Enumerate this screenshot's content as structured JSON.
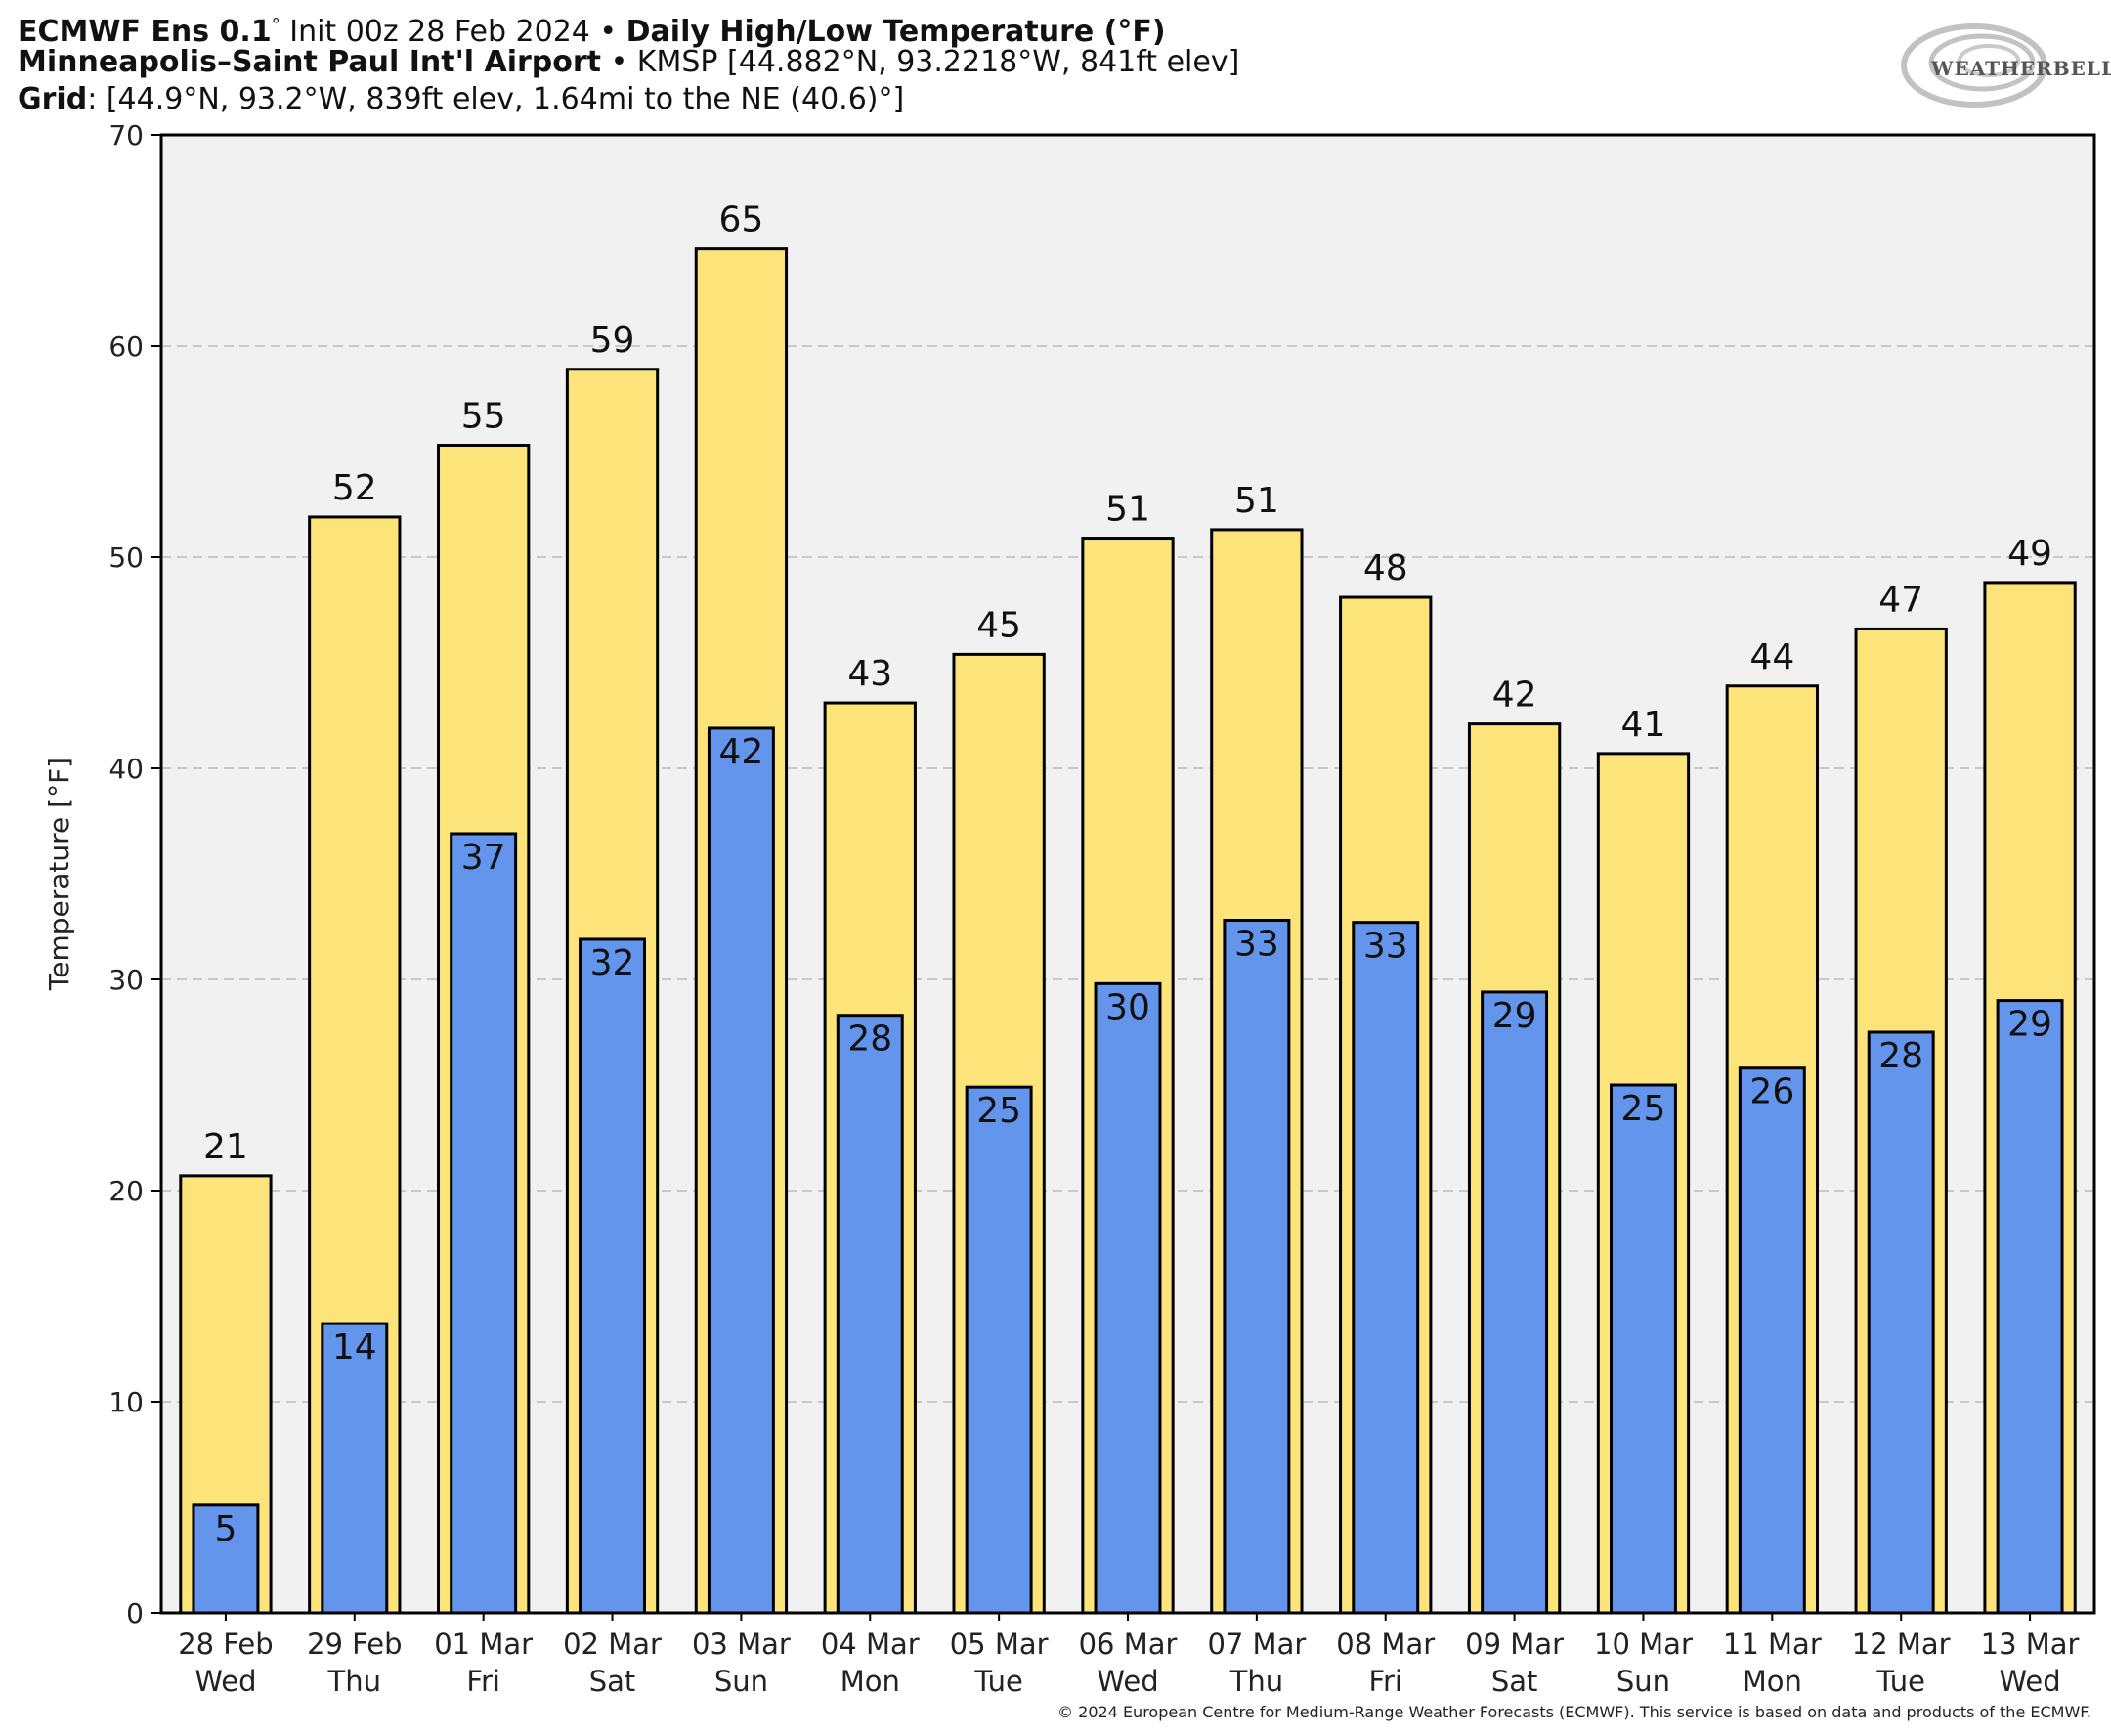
{
  "header": {
    "line1_bold_a": "ECMWF Ens 0.1",
    "line1_deg": "°",
    "line1_rest": " Init 00z 28 Feb 2024 • ",
    "line1_bold_b": "Daily High/Low Temperature (°F)",
    "line2_bold": "Minneapolis–Saint Paul Int'l Airport",
    "line2_rest": " • KMSP [44.882°N, 93.2218°W, 841ft elev]",
    "line3_bold": "Grid",
    "line3_rest": ": [44.9°N, 93.2°W, 839ft elev, 1.64mi to the NE (40.6)°]"
  },
  "logo": {
    "text": "WEATHERBELL"
  },
  "credit": "© 2024 European Centre for Medium-Range Weather Forecasts (ECMWF). This service is based on data and products of the ECMWF.",
  "colors": {
    "high": "#fde47a",
    "low": "#6495ed",
    "plot_bg": "#f1f1f1",
    "grid": "#c8c8c8"
  },
  "chart_data": {
    "type": "bar",
    "title": "Daily High/Low Temperature (°F)",
    "ylabel": "Temperature [°F]",
    "ylim": [
      0,
      70
    ],
    "yticks": [
      0,
      10,
      20,
      30,
      40,
      50,
      60,
      70
    ],
    "grid": true,
    "categories": [
      [
        "28 Feb",
        "Wed"
      ],
      [
        "29 Feb",
        "Thu"
      ],
      [
        "01 Mar",
        "Fri"
      ],
      [
        "02 Mar",
        "Sat"
      ],
      [
        "03 Mar",
        "Sun"
      ],
      [
        "04 Mar",
        "Mon"
      ],
      [
        "05 Mar",
        "Tue"
      ],
      [
        "06 Mar",
        "Wed"
      ],
      [
        "07 Mar",
        "Thu"
      ],
      [
        "08 Mar",
        "Fri"
      ],
      [
        "09 Mar",
        "Sat"
      ],
      [
        "10 Mar",
        "Sun"
      ],
      [
        "11 Mar",
        "Mon"
      ],
      [
        "12 Mar",
        "Tue"
      ],
      [
        "13 Mar",
        "Wed"
      ]
    ],
    "series": [
      {
        "key": "high",
        "values": [
          20.7,
          51.9,
          55.3,
          58.9,
          64.6,
          43.1,
          45.4,
          50.9,
          51.3,
          48.1,
          42.1,
          40.7,
          43.9,
          46.6,
          48.8
        ],
        "labels": [
          "21",
          "52",
          "55",
          "59",
          "65",
          "43",
          "45",
          "51",
          "51",
          "48",
          "42",
          "41",
          "44",
          "47",
          "49"
        ]
      },
      {
        "key": "low",
        "values": [
          5.1,
          13.7,
          36.9,
          31.9,
          41.9,
          28.3,
          24.9,
          29.8,
          32.8,
          32.7,
          29.4,
          25.0,
          25.8,
          27.5,
          29.0
        ],
        "labels": [
          "5",
          "14",
          "37",
          "32",
          "42",
          "28",
          "25",
          "30",
          "33",
          "33",
          "29",
          "25",
          "26",
          "28",
          "29"
        ]
      }
    ]
  }
}
